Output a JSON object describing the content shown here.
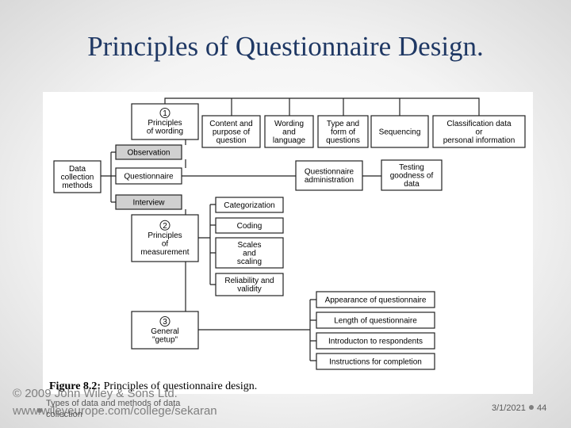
{
  "title": "Principles of Questionnaire Design.",
  "figure": {
    "nodes": [
      {
        "number": "1",
        "lines": [
          "Principles",
          "of wording"
        ]
      },
      {
        "lines": [
          "Content and",
          "purpose of",
          "question"
        ]
      },
      {
        "lines": [
          "Wording",
          "and",
          "language"
        ]
      },
      {
        "lines": [
          "Type and",
          "form of",
          "questions"
        ]
      },
      {
        "lines": [
          "Sequencing"
        ]
      },
      {
        "lines": [
          "Classification data",
          "or",
          "personal information"
        ]
      },
      {
        "lines": [
          "Observation"
        ]
      },
      {
        "lines": [
          "Data",
          "collection",
          "methods"
        ]
      },
      {
        "lines": [
          "Questionnaire"
        ]
      },
      {
        "lines": [
          "Interview"
        ]
      },
      {
        "lines": [
          "Questionnaire",
          "administration"
        ]
      },
      {
        "lines": [
          "Testing",
          "goodness of",
          "data"
        ]
      },
      {
        "lines": [
          "Categorization"
        ]
      },
      {
        "number": "2",
        "lines": [
          "Principles",
          "of",
          "measurement"
        ]
      },
      {
        "lines": [
          "Coding"
        ]
      },
      {
        "lines": [
          "Scales",
          "and",
          "scaling"
        ]
      },
      {
        "lines": [
          "Reliability and",
          "validity"
        ]
      },
      {
        "number": "3",
        "lines": [
          "General",
          "\"getup\""
        ]
      },
      {
        "lines": [
          "Appearance of questionnaire"
        ]
      },
      {
        "lines": [
          "Length of questionnaire"
        ]
      },
      {
        "lines": [
          "Introducton to respondents"
        ]
      },
      {
        "lines": [
          "Instructions for completion"
        ]
      }
    ],
    "caption_label": "Figure 8.2:",
    "caption_text": "Principles of questionnaire design."
  },
  "footer": {
    "copyright": "© 2009 John Wiley & Sons Ltd.",
    "url": "www.wileyeurope.com/college/sekaran",
    "subtitle_lines": [
      "Types of data and methods of data",
      "collection"
    ],
    "date": "3/1/2021",
    "page": "44"
  }
}
